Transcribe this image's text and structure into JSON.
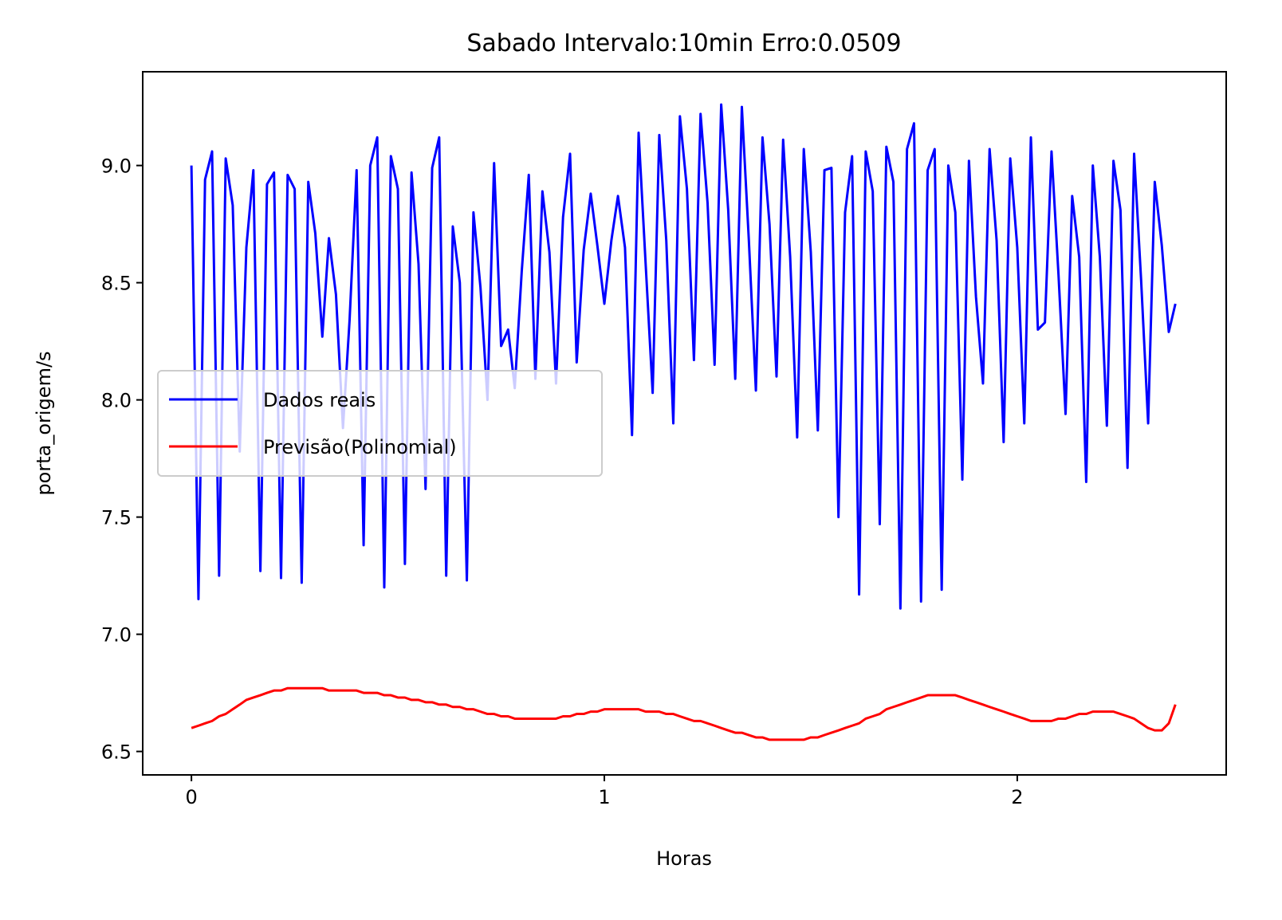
{
  "chart_data": {
    "type": "line",
    "title": "Sabado Intervalo:10min Erro:0.0509",
    "xlabel": "Horas",
    "ylabel": "porta_origem/s",
    "x": [
      0,
      0.017,
      0.033,
      0.05,
      0.067,
      0.083,
      0.1,
      0.117,
      0.133,
      0.15,
      0.167,
      0.183,
      0.2,
      0.217,
      0.233,
      0.25,
      0.267,
      0.283,
      0.3,
      0.317,
      0.333,
      0.35,
      0.367,
      0.383,
      0.4,
      0.417,
      0.433,
      0.45,
      0.467,
      0.483,
      0.5,
      0.517,
      0.533,
      0.55,
      0.567,
      0.583,
      0.6,
      0.617,
      0.633,
      0.65,
      0.667,
      0.683,
      0.7,
      0.717,
      0.733,
      0.75,
      0.767,
      0.783,
      0.8,
      0.817,
      0.833,
      0.85,
      0.867,
      0.883,
      0.9,
      0.917,
      0.933,
      0.95,
      0.967,
      0.983,
      1,
      1.017,
      1.033,
      1.05,
      1.067,
      1.083,
      1.1,
      1.117,
      1.133,
      1.15,
      1.167,
      1.183,
      1.2,
      1.217,
      1.233,
      1.25,
      1.267,
      1.283,
      1.3,
      1.317,
      1.333,
      1.35,
      1.367,
      1.383,
      1.4,
      1.417,
      1.433,
      1.45,
      1.467,
      1.483,
      1.5,
      1.517,
      1.533,
      1.55,
      1.567,
      1.583,
      1.6,
      1.617,
      1.633,
      1.65,
      1.667,
      1.683,
      1.7,
      1.717,
      1.733,
      1.75,
      1.767,
      1.783,
      1.8,
      1.817,
      1.833,
      1.85,
      1.867,
      1.883,
      1.9,
      1.917,
      1.933,
      1.95,
      1.967,
      1.983,
      2,
      2.017,
      2.033,
      2.05,
      2.067,
      2.083,
      2.1,
      2.117,
      2.133,
      2.15,
      2.167,
      2.183,
      2.2,
      2.217,
      2.233,
      2.25,
      2.267,
      2.283,
      2.3,
      2.317,
      2.333,
      2.35,
      2.367,
      2.383
    ],
    "series": [
      {
        "name": "Dados reais",
        "color": "#0000ff",
        "values": [
          9.0,
          7.15,
          8.94,
          9.06,
          7.25,
          9.03,
          8.83,
          7.78,
          8.65,
          8.98,
          7.27,
          8.92,
          8.97,
          7.24,
          8.96,
          8.9,
          7.22,
          8.93,
          8.71,
          8.27,
          8.69,
          8.45,
          7.88,
          8.34,
          8.98,
          7.38,
          9.0,
          9.12,
          7.2,
          9.04,
          8.9,
          7.3,
          8.97,
          8.58,
          7.62,
          8.99,
          9.12,
          7.25,
          8.74,
          8.5,
          7.23,
          8.8,
          8.48,
          8.0,
          9.01,
          8.23,
          8.3,
          8.05,
          8.55,
          8.96,
          8.09,
          8.89,
          8.63,
          8.07,
          8.78,
          9.05,
          8.16,
          8.64,
          8.88,
          8.66,
          8.41,
          8.68,
          8.87,
          8.65,
          7.85,
          9.14,
          8.58,
          8.03,
          9.13,
          8.68,
          7.9,
          9.21,
          8.9,
          8.17,
          9.22,
          8.84,
          8.15,
          9.26,
          8.81,
          8.09,
          9.25,
          8.68,
          8.04,
          9.12,
          8.75,
          8.1,
          9.11,
          8.61,
          7.84,
          9.07,
          8.63,
          7.87,
          8.98,
          8.99,
          7.5,
          8.8,
          9.04,
          7.17,
          9.06,
          8.89,
          7.47,
          9.08,
          8.93,
          7.11,
          9.07,
          9.18,
          7.14,
          8.98,
          9.07,
          7.19,
          9.0,
          8.8,
          7.66,
          9.02,
          8.44,
          8.07,
          9.07,
          8.68,
          7.82,
          9.03,
          8.65,
          7.9,
          9.12,
          8.3,
          8.33,
          9.06,
          8.53,
          7.94,
          8.87,
          8.61,
          7.65,
          9.0,
          8.61,
          7.89,
          9.02,
          8.81,
          7.71,
          9.05,
          8.51,
          7.9,
          8.93,
          8.66,
          8.29,
          8.41
        ]
      },
      {
        "name": "Previsão(Polinomial)",
        "color": "#ff0000",
        "values": [
          6.6,
          6.61,
          6.62,
          6.63,
          6.65,
          6.66,
          6.68,
          6.7,
          6.72,
          6.73,
          6.74,
          6.75,
          6.76,
          6.76,
          6.77,
          6.77,
          6.77,
          6.77,
          6.77,
          6.77,
          6.76,
          6.76,
          6.76,
          6.76,
          6.76,
          6.75,
          6.75,
          6.75,
          6.74,
          6.74,
          6.73,
          6.73,
          6.72,
          6.72,
          6.71,
          6.71,
          6.7,
          6.7,
          6.69,
          6.69,
          6.68,
          6.68,
          6.67,
          6.66,
          6.66,
          6.65,
          6.65,
          6.64,
          6.64,
          6.64,
          6.64,
          6.64,
          6.64,
          6.64,
          6.65,
          6.65,
          6.66,
          6.66,
          6.67,
          6.67,
          6.68,
          6.68,
          6.68,
          6.68,
          6.68,
          6.68,
          6.67,
          6.67,
          6.67,
          6.66,
          6.66,
          6.65,
          6.64,
          6.63,
          6.63,
          6.62,
          6.61,
          6.6,
          6.59,
          6.58,
          6.58,
          6.57,
          6.56,
          6.56,
          6.55,
          6.55,
          6.55,
          6.55,
          6.55,
          6.55,
          6.56,
          6.56,
          6.57,
          6.58,
          6.59,
          6.6,
          6.61,
          6.62,
          6.64,
          6.65,
          6.66,
          6.68,
          6.69,
          6.7,
          6.71,
          6.72,
          6.73,
          6.74,
          6.74,
          6.74,
          6.74,
          6.74,
          6.73,
          6.72,
          6.71,
          6.7,
          6.69,
          6.68,
          6.67,
          6.66,
          6.65,
          6.64,
          6.63,
          6.63,
          6.63,
          6.63,
          6.64,
          6.64,
          6.65,
          6.66,
          6.66,
          6.67,
          6.67,
          6.67,
          6.67,
          6.66,
          6.65,
          6.64,
          6.62,
          6.6,
          6.59,
          6.59,
          6.62,
          6.7
        ]
      }
    ],
    "xlim": [
      -0.118,
      2.506
    ],
    "xticks": [
      0,
      1,
      2
    ],
    "ylim": [
      6.4,
      9.4
    ],
    "yticks": [
      6.5,
      {
        "value": 7.0,
        "label": "7.0"
      },
      7.5,
      {
        "value": 8.0,
        "label": "8.0"
      },
      8.5,
      {
        "value": 9.0,
        "label": "9.0"
      }
    ],
    "legend": "center left"
  }
}
